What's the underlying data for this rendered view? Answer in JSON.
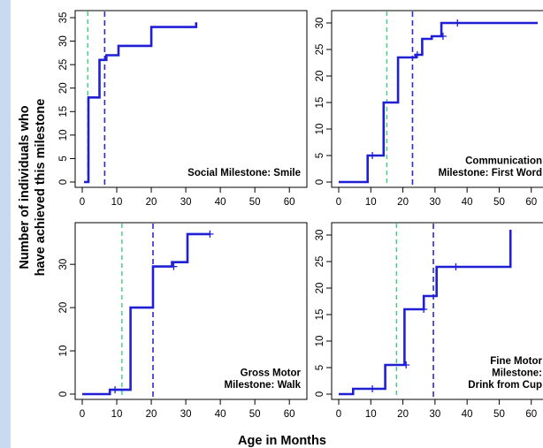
{
  "figure": {
    "ylabel_line1": "Number of individuals who",
    "ylabel_line2": "have achieved this milestone",
    "xlabel": "Age in Months",
    "colors": {
      "step_line": "#1f1fd6",
      "median_line": "#2a2acc",
      "early_line": "#3ad07a",
      "background": "#c9d9ef"
    }
  },
  "chart_data": [
    {
      "type": "line",
      "caption_lines": [
        "Social Milestone: Smile"
      ],
      "xlim": [
        0,
        62
      ],
      "ylim": [
        0,
        35
      ],
      "xticks": [
        0,
        10,
        20,
        30,
        40,
        50,
        60
      ],
      "yticks": [
        0,
        5,
        10,
        15,
        20,
        25,
        30,
        35
      ],
      "vline_green": 1.6,
      "vline_blue": 6.5,
      "steps": [
        [
          0.5,
          0
        ],
        [
          1.8,
          0
        ],
        [
          1.8,
          18
        ],
        [
          5,
          18
        ],
        [
          5,
          26
        ],
        [
          7,
          26
        ],
        [
          7,
          27
        ],
        [
          10.5,
          27
        ],
        [
          10.5,
          29
        ],
        [
          20,
          29
        ],
        [
          20,
          33
        ],
        [
          33,
          33
        ],
        [
          33,
          34
        ]
      ],
      "censor_marks": []
    },
    {
      "type": "line",
      "caption_lines": [
        "Communication",
        "Milestone: First Word"
      ],
      "xlim": [
        0,
        62
      ],
      "ylim": [
        0,
        31
      ],
      "xticks": [
        0,
        10,
        20,
        30,
        40,
        50,
        60
      ],
      "yticks": [
        0,
        5,
        10,
        15,
        20,
        25,
        30
      ],
      "vline_green": 15,
      "vline_blue": 23,
      "steps": [
        [
          0,
          0
        ],
        [
          9,
          0
        ],
        [
          9,
          5
        ],
        [
          14,
          5
        ],
        [
          14,
          15
        ],
        [
          18.5,
          15
        ],
        [
          18.5,
          23.5
        ],
        [
          24,
          23.5
        ],
        [
          24,
          24
        ],
        [
          26,
          24
        ],
        [
          26,
          27
        ],
        [
          29,
          27
        ],
        [
          29,
          27.5
        ],
        [
          32,
          27.5
        ],
        [
          32,
          30
        ],
        [
          62,
          30
        ]
      ],
      "censor_marks": [
        [
          10.5,
          5
        ],
        [
          24.5,
          24
        ],
        [
          32.5,
          27.5
        ],
        [
          37,
          30
        ]
      ]
    },
    {
      "type": "line",
      "caption_lines": [
        "Gross Motor",
        "Milestone: Walk"
      ],
      "xlim": [
        0,
        62
      ],
      "ylim": [
        0,
        38
      ],
      "xticks": [
        0,
        10,
        20,
        30,
        40,
        50,
        60
      ],
      "yticks": [
        0,
        10,
        20,
        30
      ],
      "vline_green": 11.5,
      "vline_blue": 20.5,
      "steps": [
        [
          0,
          0
        ],
        [
          8,
          0
        ],
        [
          8,
          1
        ],
        [
          14,
          1
        ],
        [
          14,
          20
        ],
        [
          20.5,
          20
        ],
        [
          20.5,
          29.5
        ],
        [
          26,
          29.5
        ],
        [
          26,
          30.5
        ],
        [
          30.5,
          30.5
        ],
        [
          30.5,
          37
        ],
        [
          37,
          37
        ]
      ],
      "censor_marks": [
        [
          9.5,
          1
        ],
        [
          26.5,
          29.5
        ],
        [
          37,
          37
        ]
      ]
    },
    {
      "type": "line",
      "caption_lines": [
        "Fine Motor",
        "Milestone:",
        "Drink from Cup"
      ],
      "xlim": [
        0,
        62
      ],
      "ylim": [
        0,
        31
      ],
      "xticks": [
        0,
        10,
        20,
        30,
        40,
        50,
        60
      ],
      "yticks": [
        0,
        5,
        10,
        15,
        20,
        25,
        30
      ],
      "vline_green": 18,
      "vline_blue": 29.5,
      "steps": [
        [
          0,
          0
        ],
        [
          4.5,
          0
        ],
        [
          4.5,
          1
        ],
        [
          14.5,
          1
        ],
        [
          14.5,
          5.5
        ],
        [
          20.5,
          5.5
        ],
        [
          20.5,
          16
        ],
        [
          26.5,
          16
        ],
        [
          26.5,
          18.5
        ],
        [
          30.5,
          18.5
        ],
        [
          30.5,
          24
        ],
        [
          53.5,
          24
        ],
        [
          53.5,
          31
        ]
      ],
      "censor_marks": [
        [
          10.5,
          1
        ],
        [
          21,
          5.5
        ],
        [
          26.5,
          16
        ],
        [
          36.5,
          24
        ]
      ]
    }
  ]
}
